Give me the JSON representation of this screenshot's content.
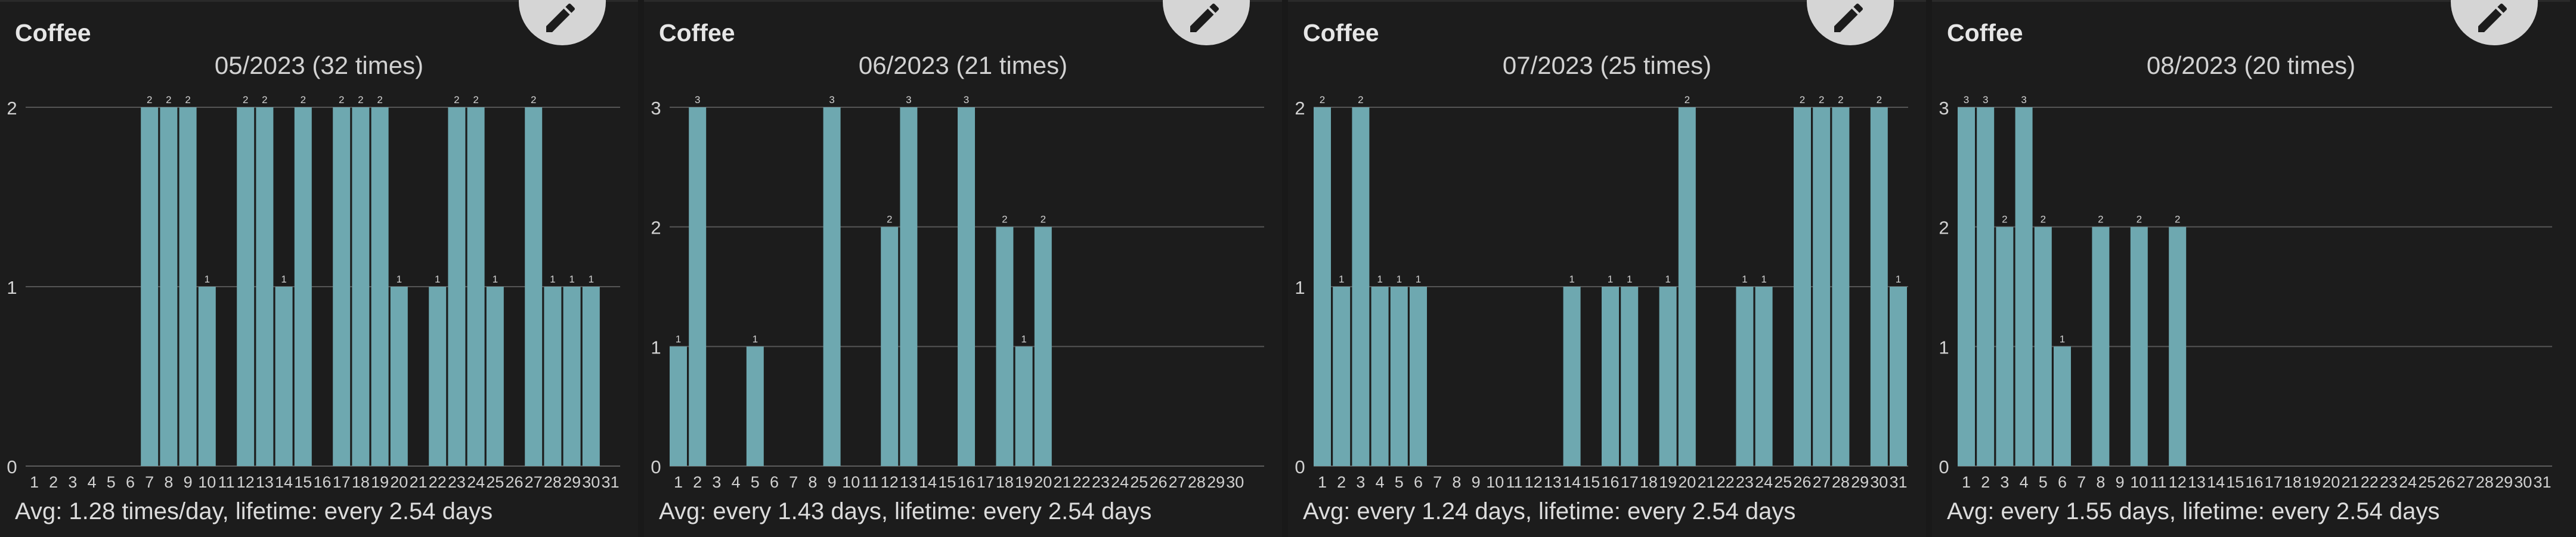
{
  "colors": {
    "background": "#191919",
    "bar": "#6ea8b0",
    "gridline": "#555555",
    "text": "#d2d2d2",
    "edit_button": "#d5d5d5"
  },
  "cards": [
    {
      "title": "Coffee",
      "edit_icon": "pencil-icon",
      "footer": "Avg: 1.28 times/day, lifetime: every 2.54 days",
      "chart_data": {
        "type": "bar",
        "title": "05/2023 (32 times)",
        "categories": [
          "1",
          "2",
          "3",
          "4",
          "5",
          "6",
          "7",
          "8",
          "9",
          "10",
          "11",
          "12",
          "13",
          "14",
          "15",
          "16",
          "17",
          "18",
          "19",
          "20",
          "21",
          "22",
          "23",
          "24",
          "25",
          "26",
          "27",
          "28",
          "29",
          "30",
          "31"
        ],
        "values": [
          0,
          0,
          0,
          0,
          0,
          0,
          2,
          2,
          2,
          1,
          0,
          2,
          2,
          1,
          2,
          0,
          2,
          2,
          2,
          1,
          0,
          1,
          2,
          2,
          1,
          0,
          2,
          1,
          1,
          1,
          0
        ],
        "yticks": [
          0,
          1,
          2
        ],
        "ylim": [
          0,
          2
        ],
        "xlabel": "",
        "ylabel": "",
        "grid": true
      }
    },
    {
      "title": "Coffee",
      "edit_icon": "pencil-icon",
      "footer": "Avg: every 1.43 days, lifetime: every 2.54 days",
      "chart_data": {
        "type": "bar",
        "title": "06/2023 (21 times)",
        "categories": [
          "1",
          "2",
          "3",
          "4",
          "5",
          "6",
          "7",
          "8",
          "9",
          "10",
          "11",
          "12",
          "13",
          "14",
          "15",
          "16",
          "17",
          "18",
          "19",
          "20",
          "21",
          "22",
          "23",
          "24",
          "25",
          "26",
          "27",
          "28",
          "29",
          "30"
        ],
        "values": [
          1,
          3,
          0,
          0,
          1,
          0,
          0,
          0,
          3,
          0,
          0,
          2,
          3,
          0,
          0,
          3,
          0,
          2,
          1,
          2,
          0,
          0,
          0,
          0,
          0,
          0,
          0,
          0,
          0,
          0
        ],
        "yticks": [
          0,
          1,
          2,
          3
        ],
        "ylim": [
          0,
          3
        ],
        "xlabel": "",
        "ylabel": "",
        "grid": true
      }
    },
    {
      "title": "Coffee",
      "edit_icon": "pencil-icon",
      "footer": "Avg: every 1.24 days, lifetime: every 2.54 days",
      "chart_data": {
        "type": "bar",
        "title": "07/2023 (25 times)",
        "categories": [
          "1",
          "2",
          "3",
          "4",
          "5",
          "6",
          "7",
          "8",
          "9",
          "10",
          "11",
          "12",
          "13",
          "14",
          "15",
          "16",
          "17",
          "18",
          "19",
          "20",
          "21",
          "22",
          "23",
          "24",
          "25",
          "26",
          "27",
          "28",
          "29",
          "30",
          "31"
        ],
        "values": [
          2,
          1,
          2,
          1,
          1,
          1,
          0,
          0,
          0,
          0,
          0,
          0,
          0,
          1,
          0,
          1,
          1,
          0,
          1,
          2,
          0,
          0,
          1,
          1,
          0,
          2,
          2,
          2,
          0,
          2,
          1
        ],
        "yticks": [
          0,
          1,
          2
        ],
        "ylim": [
          0,
          2
        ],
        "xlabel": "",
        "ylabel": "",
        "grid": true
      }
    },
    {
      "title": "Coffee",
      "edit_icon": "pencil-icon",
      "footer": "Avg: every 1.55 days, lifetime: every 2.54 days",
      "chart_data": {
        "type": "bar",
        "title": "08/2023 (20 times)",
        "categories": [
          "1",
          "2",
          "3",
          "4",
          "5",
          "6",
          "7",
          "8",
          "9",
          "10",
          "11",
          "12",
          "13",
          "14",
          "15",
          "16",
          "17",
          "18",
          "19",
          "20",
          "21",
          "22",
          "23",
          "24",
          "25",
          "26",
          "27",
          "28",
          "29",
          "30",
          "31"
        ],
        "values": [
          3,
          3,
          2,
          3,
          2,
          1,
          0,
          2,
          0,
          2,
          0,
          2,
          0,
          0,
          0,
          0,
          0,
          0,
          0,
          0,
          0,
          0,
          0,
          0,
          0,
          0,
          0,
          0,
          0,
          0,
          0
        ],
        "yticks": [
          0,
          1,
          2,
          3
        ],
        "ylim": [
          0,
          3
        ],
        "xlabel": "",
        "ylabel": "",
        "grid": true
      }
    }
  ]
}
